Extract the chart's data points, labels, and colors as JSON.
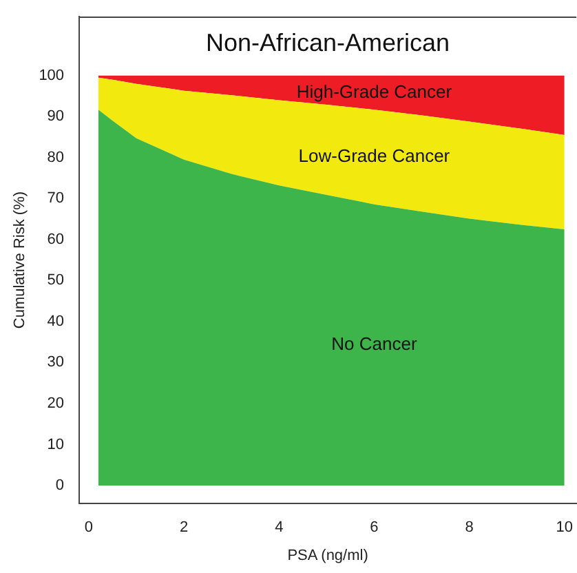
{
  "chart_data": {
    "type": "area",
    "stacked": true,
    "title": "Non-African-American",
    "xlabel": "PSA (ng/ml)",
    "ylabel": "Cumulative Risk (%)",
    "x": [
      0.2,
      0.5,
      1,
      2,
      3,
      4,
      5,
      6,
      7,
      8,
      9,
      10
    ],
    "series": [
      {
        "name": "No Cancer",
        "color": "#3db54a",
        "values": [
          91.7,
          89,
          84.7,
          79.5,
          76,
          73.2,
          70.9,
          68.6,
          66.8,
          65.1,
          63.7,
          62.5
        ]
      },
      {
        "name": "Low-Grade Cancer",
        "color": "#f2ea0e",
        "values": [
          7.8,
          10,
          13.3,
          16.8,
          19.2,
          20.8,
          22,
          23.1,
          23.5,
          23.7,
          23.5,
          23
        ]
      },
      {
        "name": "High-Grade Cancer",
        "color": "#ee1c25",
        "values": [
          0.5,
          1,
          2,
          3.7,
          4.8,
          6,
          7.1,
          8.3,
          9.7,
          11.2,
          12.8,
          14.5
        ]
      }
    ],
    "xlim": [
      -0.2,
      10.25
    ],
    "ylim": [
      -4.4,
      114.4
    ],
    "xticks": [
      0,
      2,
      4,
      6,
      8,
      10
    ],
    "yticks": [
      0,
      10,
      20,
      30,
      40,
      50,
      60,
      70,
      80,
      90,
      100
    ],
    "grid": false,
    "legend": false
  }
}
